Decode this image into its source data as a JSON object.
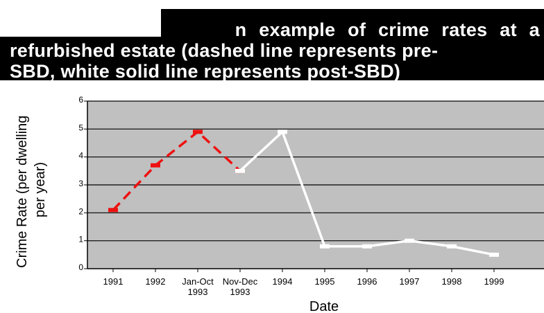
{
  "title": {
    "line1": "n example of crime rates at a",
    "line2": "refurbished estate (dashed line represents pre-",
    "line3": "SBD, white solid line represents post-SBD)"
  },
  "colors": {
    "plot_bg": "#c0c0c0",
    "pre_sbd": "#ee1111",
    "post_sbd": "#ffffff",
    "title_bg": "#000000",
    "title_text": "#ffffff"
  },
  "chart_data": {
    "type": "line",
    "categories": [
      "1991",
      "1992",
      "Jan-Oct 1993",
      "Nov-Dec 1993",
      "1994",
      "1995",
      "1996",
      "1997",
      "1998",
      "1999"
    ],
    "category_labels": [
      [
        "1991"
      ],
      [
        "1992"
      ],
      [
        "Jan-Oct",
        "1993"
      ],
      [
        "Nov-Dec",
        "1993"
      ],
      [
        "1994"
      ],
      [
        "1995"
      ],
      [
        "1996"
      ],
      [
        "1997"
      ],
      [
        "1998"
      ],
      [
        "1999"
      ]
    ],
    "series": [
      {
        "key": "pre",
        "style": "dashed",
        "color": "#ee1111",
        "values": [
          2.1,
          3.7,
          4.9,
          3.5,
          null,
          null,
          null,
          null,
          null,
          null
        ]
      },
      {
        "key": "post",
        "style": "solid",
        "color": "#ffffff",
        "values": [
          null,
          null,
          null,
          3.5,
          4.9,
          0.8,
          0.8,
          1.0,
          0.8,
          0.5
        ]
      }
    ],
    "xlabel": "Date",
    "ylabel_lines": [
      "Crime Rate (per dwelling",
      "per year)"
    ],
    "ylim": [
      0,
      6
    ],
    "yticks": [
      "0",
      "1",
      "2",
      "3",
      "4",
      "5",
      "6"
    ],
    "grid": true
  }
}
